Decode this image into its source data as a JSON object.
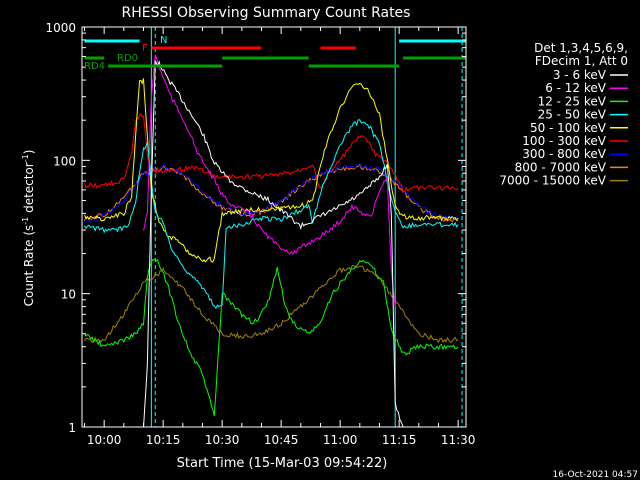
{
  "chart_data": {
    "type": "line",
    "title": "RHESSI Observing Summary Count Rates",
    "xlabel": "Start Time (15-Mar-03 09:54:22)",
    "ylabel_main": "Count Rate (s",
    "ylabel_sup1": "-1",
    "ylabel_mid": " detector",
    "ylabel_sup2": "-1",
    "ylabel_end": ")",
    "timestamp": "16-Oct-2021 04:57",
    "y_scale": "log",
    "ylim": [
      1,
      1000
    ],
    "xlim_minutes": [
      "09:54:22",
      "11:32:00"
    ],
    "x_tick_labels": [
      "10:00",
      "10:15",
      "10:30",
      "10:45",
      "11:00",
      "11:15",
      "11:30"
    ],
    "y_tick_labels": [
      "1",
      "10",
      "100",
      "1000"
    ],
    "legend_header": [
      "Det 1,3,4,5,6,9,",
      "FDecim 1, Att 0"
    ],
    "flags": {
      "N_label": "N",
      "F_label": "F",
      "RD0_label": "RD0",
      "RD4_label": "RD4",
      "N_color": "#00ffff",
      "F_color": "#ff0000",
      "RD_color": "#00a000"
    },
    "series": [
      {
        "name": "3 - 6 keV",
        "color": "#ffffff",
        "points": [
          [
            "10:10",
            1
          ],
          [
            "10:11",
            3
          ],
          [
            "10:12",
            60
          ],
          [
            "10:13",
            550
          ],
          [
            "10:14",
            530
          ],
          [
            "10:16",
            420
          ],
          [
            "10:20",
            280
          ],
          [
            "10:25",
            160
          ],
          [
            "10:28",
            95
          ],
          [
            "10:32",
            70
          ],
          [
            "10:36",
            60
          ],
          [
            "10:42",
            50
          ],
          [
            "10:46",
            40
          ],
          [
            "10:50",
            32
          ],
          [
            "10:55",
            38
          ],
          [
            "11:00",
            45
          ],
          [
            "11:05",
            55
          ],
          [
            "11:10",
            75
          ],
          [
            "11:12",
            95
          ],
          [
            "11:13",
            40
          ],
          [
            "11:14",
            1.5
          ],
          [
            "11:16",
            1
          ]
        ]
      },
      {
        "name": "6 - 12 keV",
        "color": "#ff00ff",
        "points": [
          [
            "10:10",
            30
          ],
          [
            "10:11",
            40
          ],
          [
            "10:12",
            300
          ],
          [
            "10:13",
            620
          ],
          [
            "10:14",
            500
          ],
          [
            "10:17",
            300
          ],
          [
            "10:21",
            180
          ],
          [
            "10:24",
            110
          ],
          [
            "10:27",
            80
          ],
          [
            "10:30",
            55
          ],
          [
            "10:33",
            45
          ],
          [
            "10:37",
            40
          ],
          [
            "10:40",
            30
          ],
          [
            "10:44",
            23
          ],
          [
            "10:48",
            20
          ],
          [
            "10:52",
            24
          ],
          [
            "10:56",
            28
          ],
          [
            "11:00",
            35
          ],
          [
            "11:03",
            45
          ],
          [
            "11:06",
            40
          ],
          [
            "11:08",
            38
          ],
          [
            "11:10",
            60
          ],
          [
            "11:12",
            75
          ],
          [
            "11:13",
            15
          ],
          [
            "11:14",
            8
          ]
        ]
      },
      {
        "name": "12 - 25 keV",
        "color": "#00ff00",
        "points": [
          [
            "09:55",
            5
          ],
          [
            "10:00",
            4
          ],
          [
            "10:05",
            4.5
          ],
          [
            "10:08",
            5
          ],
          [
            "10:10",
            6
          ],
          [
            "10:11",
            13
          ],
          [
            "10:12",
            18
          ],
          [
            "10:14",
            17
          ],
          [
            "10:16",
            12
          ],
          [
            "10:19",
            6
          ],
          [
            "10:22",
            3.5
          ],
          [
            "10:25",
            2.5
          ],
          [
            "10:28",
            1.2
          ],
          [
            "10:30",
            10
          ],
          [
            "10:33",
            8
          ],
          [
            "10:35",
            7
          ],
          [
            "10:38",
            6
          ],
          [
            "10:40",
            7
          ],
          [
            "10:42",
            9
          ],
          [
            "10:44",
            16
          ],
          [
            "10:46",
            8
          ],
          [
            "10:48",
            6
          ],
          [
            "10:52",
            5
          ],
          [
            "10:55",
            6
          ],
          [
            "10:58",
            10
          ],
          [
            "11:02",
            14
          ],
          [
            "11:05",
            18
          ],
          [
            "11:08",
            16
          ],
          [
            "11:11",
            12
          ],
          [
            "11:13",
            5.5
          ],
          [
            "11:16",
            3.5
          ],
          [
            "11:20",
            4
          ],
          [
            "11:25",
            4
          ],
          [
            "11:30",
            4
          ]
        ]
      },
      {
        "name": "25 - 50 keV",
        "color": "#00ffff",
        "points": [
          [
            "09:55",
            32
          ],
          [
            "10:00",
            30
          ],
          [
            "10:03",
            30
          ],
          [
            "10:06",
            32
          ],
          [
            "10:08",
            50
          ],
          [
            "10:09",
            80
          ],
          [
            "10:10",
            120
          ],
          [
            "10:11",
            140
          ],
          [
            "10:12",
            70
          ],
          [
            "10:13",
            40
          ],
          [
            "10:15",
            35
          ],
          [
            "10:17",
            22
          ],
          [
            "10:20",
            16
          ],
          [
            "10:23",
            13
          ],
          [
            "10:26",
            10
          ],
          [
            "10:28",
            8
          ],
          [
            "10:30",
            8
          ],
          [
            "10:31",
            32
          ],
          [
            "10:35",
            33
          ],
          [
            "10:40",
            37
          ],
          [
            "10:45",
            36
          ],
          [
            "10:48",
            40
          ],
          [
            "10:52",
            45
          ],
          [
            "10:53",
            35
          ],
          [
            "10:56",
            70
          ],
          [
            "11:00",
            130
          ],
          [
            "11:03",
            180
          ],
          [
            "11:05",
            200
          ],
          [
            "11:07",
            190
          ],
          [
            "11:10",
            130
          ],
          [
            "11:12",
            70
          ],
          [
            "11:14",
            40
          ],
          [
            "11:16",
            32
          ],
          [
            "11:20",
            33
          ],
          [
            "11:25",
            33
          ],
          [
            "11:30",
            33
          ]
        ]
      },
      {
        "name": "50 - 100 keV",
        "color": "#ffff00",
        "points": [
          [
            "09:55",
            38
          ],
          [
            "10:00",
            36
          ],
          [
            "10:03",
            38
          ],
          [
            "10:05",
            40
          ],
          [
            "10:07",
            55
          ],
          [
            "10:08",
            150
          ],
          [
            "10:09",
            380
          ],
          [
            "10:10",
            400
          ],
          [
            "10:11",
            150
          ],
          [
            "10:12",
            60
          ],
          [
            "10:14",
            35
          ],
          [
            "10:16",
            28
          ],
          [
            "10:19",
            24
          ],
          [
            "10:22",
            20
          ],
          [
            "10:25",
            18
          ],
          [
            "10:28",
            18
          ],
          [
            "10:30",
            40
          ],
          [
            "10:35",
            42
          ],
          [
            "10:40",
            43
          ],
          [
            "10:45",
            43
          ],
          [
            "10:50",
            45
          ],
          [
            "10:53",
            50
          ],
          [
            "10:56",
            120
          ],
          [
            "11:00",
            250
          ],
          [
            "11:03",
            350
          ],
          [
            "11:05",
            380
          ],
          [
            "11:07",
            340
          ],
          [
            "11:10",
            220
          ],
          [
            "11:12",
            100
          ],
          [
            "11:14",
            45
          ],
          [
            "11:16",
            38
          ],
          [
            "11:20",
            37
          ],
          [
            "11:25",
            37
          ],
          [
            "11:30",
            37
          ]
        ]
      },
      {
        "name": "100 - 300 keV",
        "color": "#ff0000",
        "points": [
          [
            "09:55",
            65
          ],
          [
            "10:00",
            65
          ],
          [
            "10:03",
            68
          ],
          [
            "10:05",
            72
          ],
          [
            "10:07",
            110
          ],
          [
            "10:08",
            200
          ],
          [
            "10:09",
            220
          ],
          [
            "10:10",
            210
          ],
          [
            "10:11",
            110
          ],
          [
            "10:12",
            85
          ],
          [
            "10:14",
            83
          ],
          [
            "10:17",
            84
          ],
          [
            "10:20",
            86
          ],
          [
            "10:23",
            88
          ],
          [
            "10:26",
            82
          ],
          [
            "10:28",
            75
          ],
          [
            "10:31",
            75
          ],
          [
            "10:35",
            75
          ],
          [
            "10:40",
            76
          ],
          [
            "10:45",
            78
          ],
          [
            "10:50",
            85
          ],
          [
            "10:53",
            95
          ],
          [
            "10:55",
            60
          ],
          [
            "10:57",
            80
          ],
          [
            "11:00",
            100
          ],
          [
            "11:03",
            130
          ],
          [
            "11:05",
            150
          ],
          [
            "11:07",
            140
          ],
          [
            "11:09",
            110
          ],
          [
            "11:12",
            95
          ],
          [
            "11:14",
            78
          ],
          [
            "11:16",
            60
          ],
          [
            "11:20",
            62
          ],
          [
            "11:25",
            62
          ],
          [
            "11:30",
            62
          ]
        ]
      },
      {
        "name": "300 - 800 keV",
        "color": "#0000ff",
        "points": [
          [
            "09:55",
            35
          ],
          [
            "10:00",
            38
          ],
          [
            "10:05",
            50
          ],
          [
            "10:10",
            78
          ],
          [
            "10:15",
            90
          ],
          [
            "10:20",
            80
          ],
          [
            "10:25",
            58
          ],
          [
            "10:30",
            45
          ],
          [
            "10:35",
            40
          ],
          [
            "10:40",
            42
          ],
          [
            "10:45",
            50
          ],
          [
            "10:50",
            65
          ],
          [
            "10:55",
            80
          ],
          [
            "11:00",
            88
          ],
          [
            "11:05",
            92
          ],
          [
            "11:10",
            85
          ],
          [
            "11:15",
            65
          ],
          [
            "11:20",
            45
          ],
          [
            "11:25",
            38
          ],
          [
            "11:30",
            36
          ]
        ]
      },
      {
        "name": "800 - 7000 keV",
        "color": "#ff8000",
        "points": [
          [
            "09:55",
            36
          ],
          [
            "10:00",
            39
          ],
          [
            "10:05",
            52
          ],
          [
            "10:10",
            80
          ],
          [
            "10:15",
            88
          ],
          [
            "10:20",
            78
          ],
          [
            "10:25",
            56
          ],
          [
            "10:30",
            44
          ],
          [
            "10:35",
            39
          ],
          [
            "10:40",
            41
          ],
          [
            "10:45",
            49
          ],
          [
            "10:50",
            64
          ],
          [
            "10:55",
            79
          ],
          [
            "11:00",
            87
          ],
          [
            "11:05",
            90
          ],
          [
            "11:10",
            83
          ],
          [
            "11:15",
            63
          ],
          [
            "11:20",
            44
          ],
          [
            "11:25",
            37
          ],
          [
            "11:30",
            35
          ]
        ]
      },
      {
        "name": "7000 - 15000 keV",
        "color": "#a08000",
        "points": [
          [
            "09:55",
            4.5
          ],
          [
            "10:00",
            4.5
          ],
          [
            "10:05",
            7
          ],
          [
            "10:10",
            12
          ],
          [
            "10:15",
            15
          ],
          [
            "10:20",
            11
          ],
          [
            "10:25",
            7
          ],
          [
            "10:30",
            5
          ],
          [
            "10:35",
            4.8
          ],
          [
            "10:40",
            5
          ],
          [
            "10:45",
            6
          ],
          [
            "10:50",
            8
          ],
          [
            "10:55",
            11
          ],
          [
            "11:00",
            15
          ],
          [
            "11:05",
            16
          ],
          [
            "11:10",
            13
          ],
          [
            "11:15",
            8
          ],
          [
            "11:20",
            5
          ],
          [
            "11:25",
            4.5
          ],
          [
            "11:30",
            4.5
          ]
        ]
      }
    ],
    "bars": [
      {
        "flag": "N",
        "row": 0,
        "color": "#00ffff",
        "start": "09:55",
        "end": "10:09"
      },
      {
        "flag": "N",
        "row": 0,
        "color": "#00ffff",
        "start": "11:15",
        "end": "11:32"
      },
      {
        "flag": "F",
        "row": 1,
        "color": "#ff0000",
        "start": "10:12",
        "end": "10:40"
      },
      {
        "flag": "F",
        "row": 1,
        "color": "#ff0000",
        "start": "10:55",
        "end": "11:04"
      },
      {
        "flag": "RD0",
        "row": 2,
        "color": "#00a000",
        "start": "09:55",
        "end": "10:00"
      },
      {
        "flag": "RD0",
        "row": 2,
        "color": "#00a000",
        "start": "10:30",
        "end": "10:52"
      },
      {
        "flag": "RD0",
        "row": 2,
        "color": "#00a000",
        "start": "11:16",
        "end": "11:32"
      },
      {
        "flag": "RD4",
        "row": 3,
        "color": "#00a000",
        "start": "10:01",
        "end": "10:30"
      },
      {
        "flag": "RD4",
        "row": 3,
        "color": "#00a000",
        "start": "10:52",
        "end": "11:15"
      }
    ],
    "vlines_solid": [
      "10:12",
      "11:14"
    ],
    "vlines_dashed": [
      "10:13",
      "11:31"
    ]
  }
}
